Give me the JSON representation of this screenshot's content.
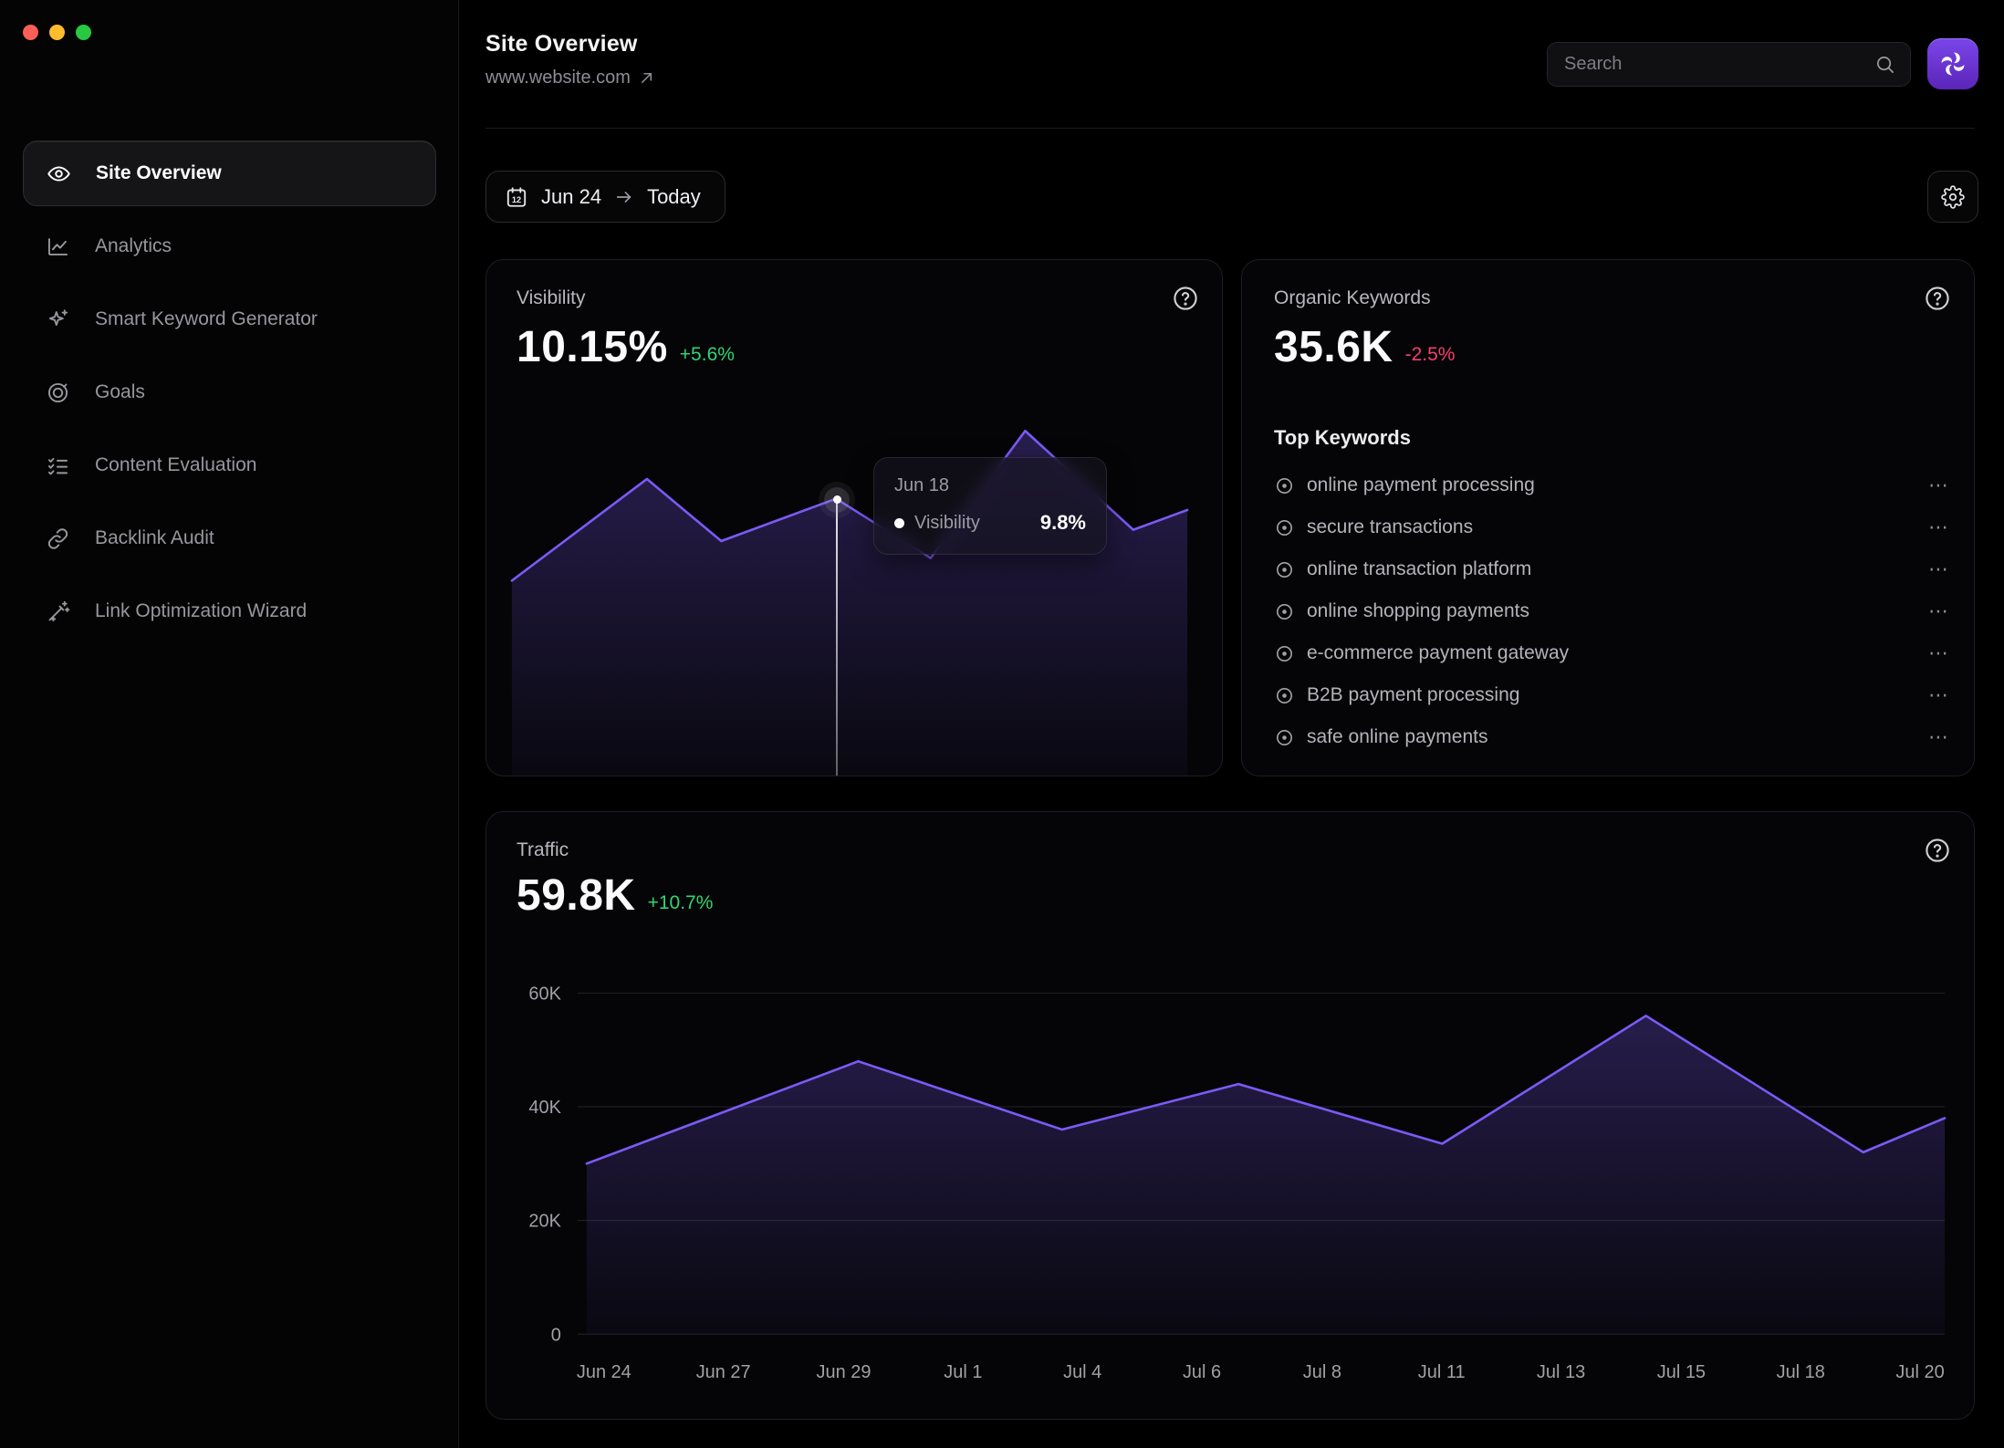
{
  "sidebar": {
    "items": [
      {
        "label": "Site Overview",
        "icon": "eye-icon",
        "active": true
      },
      {
        "label": "Analytics",
        "icon": "line-chart-icon",
        "active": false
      },
      {
        "label": "Smart Keyword Generator",
        "icon": "sparkle-icon",
        "active": false
      },
      {
        "label": "Goals",
        "icon": "target-icon",
        "active": false
      },
      {
        "label": "Content Evaluation",
        "icon": "checklist-icon",
        "active": false
      },
      {
        "label": "Backlink Audit",
        "icon": "link-icon",
        "active": false
      },
      {
        "label": "Link Optimization Wizard",
        "icon": "wand-icon",
        "active": false
      }
    ]
  },
  "header": {
    "title": "Site Overview",
    "url": "www.website.com"
  },
  "search": {
    "placeholder": "Search"
  },
  "toolbar": {
    "calendar_day": "12",
    "date_start": "Jun 24",
    "date_end": "Today"
  },
  "organic": {
    "title": "Organic Keywords",
    "kpi": "35.6K",
    "delta": "-2.5%",
    "subtitle": "Top Keywords",
    "keywords": [
      "online payment processing",
      "secure transactions",
      "online transaction platform",
      "online shopping payments",
      "e-commerce payment gateway",
      "B2B payment processing",
      "safe online payments"
    ]
  },
  "icons": {
    "more_options": "⋯"
  },
  "colors": {
    "accent_purple": "#7C5AF8",
    "positive_green": "#30D573",
    "negative_pink": "#F43F6E",
    "logo_purple": "#6D3BE0"
  },
  "chart_data": [
    {
      "id": "visibility",
      "type": "area",
      "title": "Visibility",
      "kpi": "10.15%",
      "delta": "+5.6%",
      "delta_direction": "up",
      "y_axis": "hidden",
      "line_color": "#7C5AF8",
      "hover": {
        "x_label": "Jun 18",
        "series": "Visibility",
        "value": "9.8%"
      },
      "points": [
        {
          "x_frac": 0.0,
          "value_pct": 6.9
        },
        {
          "x_frac": 0.2,
          "value_pct": 10.5
        },
        {
          "x_frac": 0.31,
          "value_pct": 8.3
        },
        {
          "x_frac": 0.48,
          "value_pct": 9.8,
          "hovered": true
        },
        {
          "x_frac": 0.62,
          "value_pct": 7.7
        },
        {
          "x_frac": 0.76,
          "value_pct": 12.2
        },
        {
          "x_frac": 0.92,
          "value_pct": 8.7
        },
        {
          "x_frac": 1.0,
          "value_pct": 9.4
        }
      ],
      "note": "values estimated from hovered point 9.8% at Jun 18; y axis not shown"
    },
    {
      "id": "traffic",
      "type": "area",
      "title": "Traffic",
      "kpi": "59.8K",
      "delta": "+10.7%",
      "delta_direction": "up",
      "line_color": "#7C5AF8",
      "grid": true,
      "y_max": 60000,
      "y_ticks": [
        "60K",
        "40K",
        "20K",
        "0"
      ],
      "x_ticks": [
        "Jun 24",
        "Jun 27",
        "Jun 29",
        "Jul 1",
        "Jul 4",
        "Jul 6",
        "Jul 8",
        "Jul 11",
        "Jul 13",
        "Jul 15",
        "Jul 18",
        "Jul 20"
      ],
      "points": [
        {
          "x_frac": 0.0,
          "value": 30000,
          "near": "Jun 24"
        },
        {
          "x_frac": 0.2,
          "value": 48000,
          "near": "Jun 29"
        },
        {
          "x_frac": 0.35,
          "value": 36000,
          "near": "Jul 3"
        },
        {
          "x_frac": 0.48,
          "value": 44000,
          "near": "Jul 7"
        },
        {
          "x_frac": 0.63,
          "value": 33500,
          "near": "Jul 11"
        },
        {
          "x_frac": 0.78,
          "value": 56000,
          "near": "Jul 14"
        },
        {
          "x_frac": 0.94,
          "value": 32000,
          "near": "Jul 19"
        },
        {
          "x_frac": 1.0,
          "value": 38000,
          "near": "Jul 20"
        }
      ]
    }
  ]
}
